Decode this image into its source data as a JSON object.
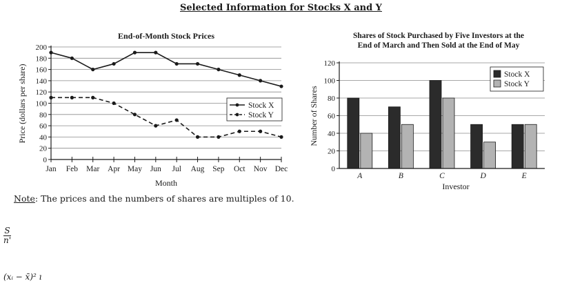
{
  "page": {
    "title": "Selected Information for Stocks X and Y",
    "note_label": "Note",
    "note_text": ": The prices and the numbers of shares are multiples of 10.",
    "fragment_fraction_top": "S",
    "fragment_fraction_bottom": "n'",
    "fragment_formula": "(xᵢ − x̄)² ı"
  },
  "colors": {
    "line": "#1a1a1a",
    "stock_x_bar": "#2b2b2b",
    "stock_y_bar": "#b3b3b3",
    "grid": "#8a8a8a"
  },
  "chart_data": [
    {
      "type": "line",
      "title": "End-of-Month Stock Prices",
      "xlabel": "Month",
      "ylabel": "Price (dollars per share)",
      "categories": [
        "Jan",
        "Feb",
        "Mar",
        "Apr",
        "May",
        "Jun",
        "Jul",
        "Aug",
        "Sep",
        "Oct",
        "Nov",
        "Dec"
      ],
      "ylim": [
        0,
        200
      ],
      "yticks": [
        0,
        20,
        40,
        60,
        80,
        100,
        120,
        140,
        160,
        180,
        200
      ],
      "grid": true,
      "legend": "center-right",
      "series": [
        {
          "name": "Stock X",
          "style": "solid",
          "values": [
            190,
            180,
            160,
            170,
            190,
            190,
            170,
            170,
            160,
            150,
            140,
            130
          ]
        },
        {
          "name": "Stock Y",
          "style": "dashed",
          "values": [
            110,
            110,
            110,
            100,
            80,
            60,
            70,
            40,
            40,
            50,
            50,
            40
          ]
        }
      ]
    },
    {
      "type": "bar",
      "title": [
        "Shares of Stock Purchased by Five Investors at the",
        "End of March and Then Sold at the End of May"
      ],
      "xlabel": "Investor",
      "ylabel": "Number of Shares",
      "categories": [
        "A",
        "B",
        "C",
        "D",
        "E"
      ],
      "ylim": [
        0,
        120
      ],
      "yticks": [
        0,
        20,
        40,
        60,
        80,
        100,
        120
      ],
      "grid": true,
      "legend": "top-right",
      "series": [
        {
          "name": "Stock X",
          "values": [
            80,
            70,
            100,
            50,
            50
          ]
        },
        {
          "name": "Stock Y",
          "values": [
            40,
            50,
            80,
            30,
            50
          ]
        }
      ]
    }
  ]
}
